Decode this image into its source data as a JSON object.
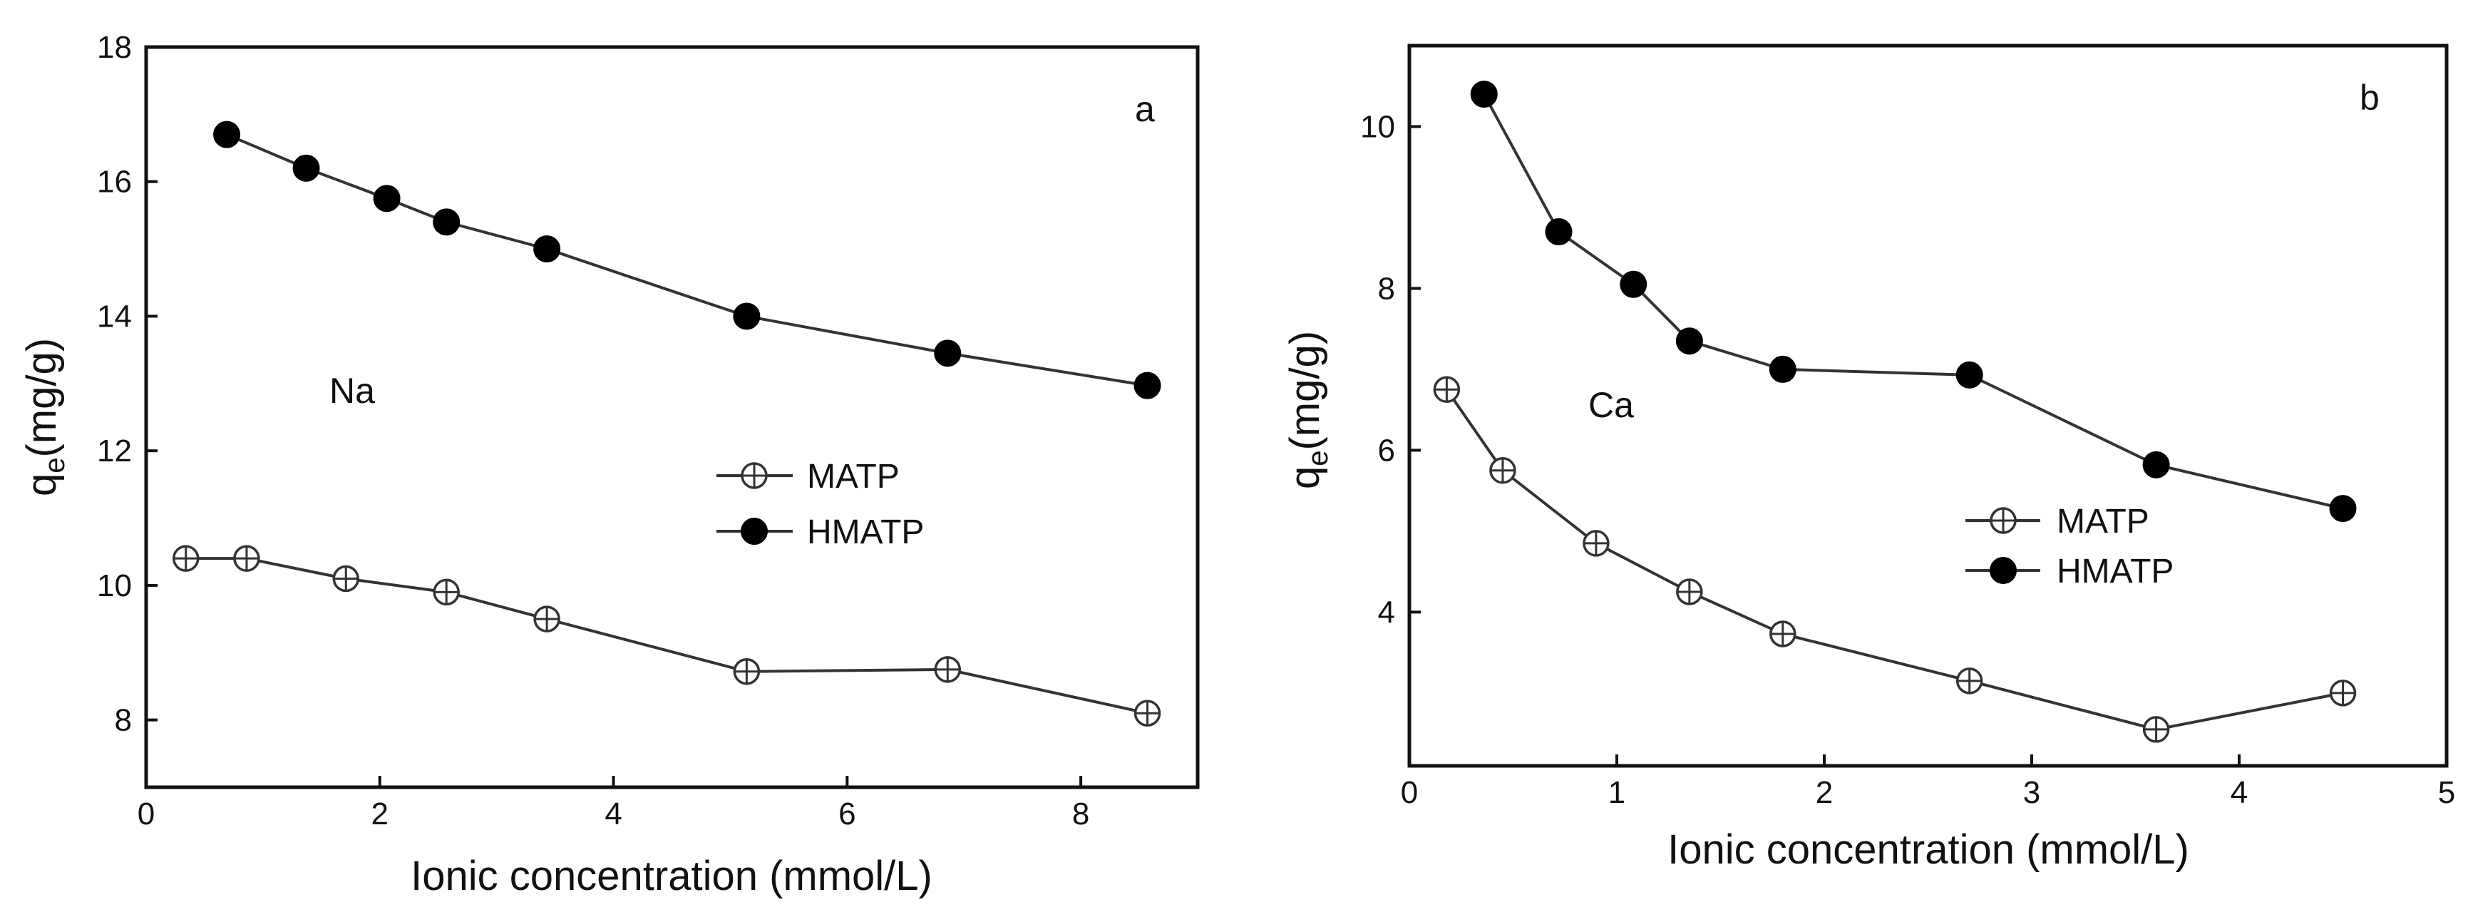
{
  "chart_data": [
    {
      "type": "line",
      "panel": "a",
      "annotation": "Na",
      "xlabel": "Ionic concentration (mmol/L)",
      "ylabel": "q",
      "ylabel_sub": "e",
      "ylabel_unit": "(mg/g)",
      "xlim": [
        0,
        9
      ],
      "ylim": [
        7,
        18
      ],
      "xticks": [
        0,
        2,
        4,
        6,
        8
      ],
      "xtick_labels": [
        "0",
        "2",
        "4",
        "6",
        "8"
      ],
      "yticks": [
        8,
        10,
        12,
        14,
        16,
        18
      ],
      "ytick_labels": [
        "8",
        "10",
        "12",
        "14",
        "16",
        "18"
      ],
      "legend_position": "middle-right",
      "series": [
        {
          "name": "MATP",
          "marker": "open-cross",
          "x": [
            0.34,
            0.86,
            1.71,
            2.57,
            3.43,
            5.14,
            6.86,
            8.57
          ],
          "y": [
            10.4,
            10.4,
            10.1,
            9.9,
            9.5,
            8.72,
            8.75,
            8.1
          ]
        },
        {
          "name": "HMATP",
          "marker": "filled",
          "x": [
            0.69,
            1.37,
            2.06,
            2.57,
            3.43,
            5.14,
            6.86,
            8.57
          ],
          "y": [
            16.7,
            16.2,
            15.75,
            15.4,
            15.0,
            14.0,
            13.45,
            12.97
          ]
        }
      ]
    },
    {
      "type": "line",
      "panel": "b",
      "annotation": "Ca",
      "xlabel": "Ionic concentration (mmol/L)",
      "ylabel": "q",
      "ylabel_sub": "e",
      "ylabel_unit": "(mg/g)",
      "xlim": [
        0,
        5
      ],
      "ylim": [
        2.1,
        11
      ],
      "xticks": [
        0,
        1,
        2,
        3,
        4,
        5
      ],
      "xtick_labels": [
        "0",
        "1",
        "2",
        "3",
        "4",
        "5"
      ],
      "yticks": [
        4,
        6,
        8,
        10
      ],
      "ytick_labels": [
        "4",
        "6",
        "8",
        "10"
      ],
      "legend_position": "middle-right",
      "series": [
        {
          "name": "MATP",
          "marker": "open-cross",
          "x": [
            0.18,
            0.45,
            0.9,
            1.35,
            1.8,
            2.7,
            3.6,
            4.5
          ],
          "y": [
            6.75,
            5.75,
            4.85,
            4.25,
            3.73,
            3.15,
            2.55,
            3.0
          ]
        },
        {
          "name": "HMATP",
          "marker": "filled",
          "x": [
            0.36,
            0.72,
            1.08,
            1.35,
            1.8,
            2.7,
            3.6,
            4.5
          ],
          "y": [
            10.4,
            8.7,
            8.05,
            7.35,
            7.0,
            6.93,
            5.82,
            5.28
          ]
        }
      ]
    }
  ]
}
